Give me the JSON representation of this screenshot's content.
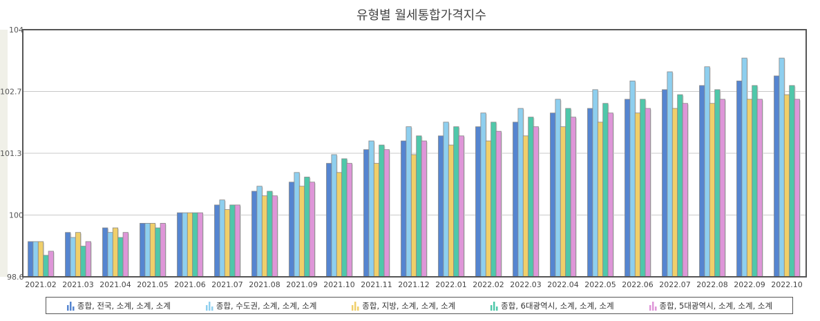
{
  "chart_data": {
    "type": "bar",
    "title": "유형별 월세통합가격지수",
    "xlabel": "",
    "ylabel": "",
    "ylim": [
      98.6,
      104
    ],
    "y_tick_labels": [
      "98.6",
      "100",
      "101.3",
      "102.7",
      "104"
    ],
    "grid": true,
    "legend_position": "bottom",
    "categories": [
      "2021.02",
      "2021.03",
      "2021.04",
      "2021.05",
      "2021.06",
      "2021.07",
      "2021.08",
      "2021.09",
      "2021.10",
      "2021.11",
      "2021.12",
      "2022.01",
      "2022.02",
      "2022.03",
      "2022.04",
      "2022.05",
      "2022.06",
      "2022.07",
      "2022.08",
      "2022.09",
      "2022.10"
    ],
    "series": [
      {
        "name": "종합, 전국, 소계, 소계, 소계",
        "color": "#5585d0",
        "values": [
          99.37,
          99.57,
          99.67,
          99.77,
          100.0,
          100.17,
          100.47,
          100.67,
          101.08,
          101.38,
          101.57,
          101.68,
          101.88,
          101.98,
          102.18,
          102.28,
          102.48,
          102.69,
          102.78,
          102.88,
          102.99
        ]
      },
      {
        "name": "종합, 수도권, 소계, 소계, 소계",
        "color": "#8ecfef",
        "values": [
          99.37,
          99.46,
          99.57,
          99.77,
          100.0,
          100.28,
          100.58,
          100.88,
          101.27,
          101.57,
          101.88,
          101.98,
          102.18,
          102.28,
          102.48,
          102.69,
          102.88,
          103.08,
          103.19,
          103.38,
          103.38
        ]
      },
      {
        "name": "종합, 지방, 소계, 소계, 소계",
        "color": "#f0cf6a",
        "values": [
          99.37,
          99.57,
          99.67,
          99.77,
          100.0,
          100.07,
          100.37,
          100.58,
          100.88,
          101.08,
          101.27,
          101.48,
          101.57,
          101.68,
          101.88,
          101.98,
          102.18,
          102.28,
          102.39,
          102.48,
          102.58
        ]
      },
      {
        "name": "종합, 6대광역시, 소계, 소계, 소계",
        "color": "#4fc8aa",
        "values": [
          99.07,
          99.27,
          99.46,
          99.67,
          100.0,
          100.17,
          100.47,
          100.78,
          101.18,
          101.48,
          101.68,
          101.88,
          101.98,
          102.09,
          102.28,
          102.39,
          102.48,
          102.58,
          102.69,
          102.78,
          102.78
        ]
      },
      {
        "name": "종합, 5대광역시, 소계, 소계, 소계",
        "color": "#de96d8",
        "values": [
          99.16,
          99.37,
          99.57,
          99.77,
          100.0,
          100.17,
          100.37,
          100.67,
          101.08,
          101.38,
          101.57,
          101.68,
          101.78,
          101.88,
          102.09,
          102.18,
          102.28,
          102.39,
          102.48,
          102.48,
          102.48
        ]
      }
    ]
  }
}
